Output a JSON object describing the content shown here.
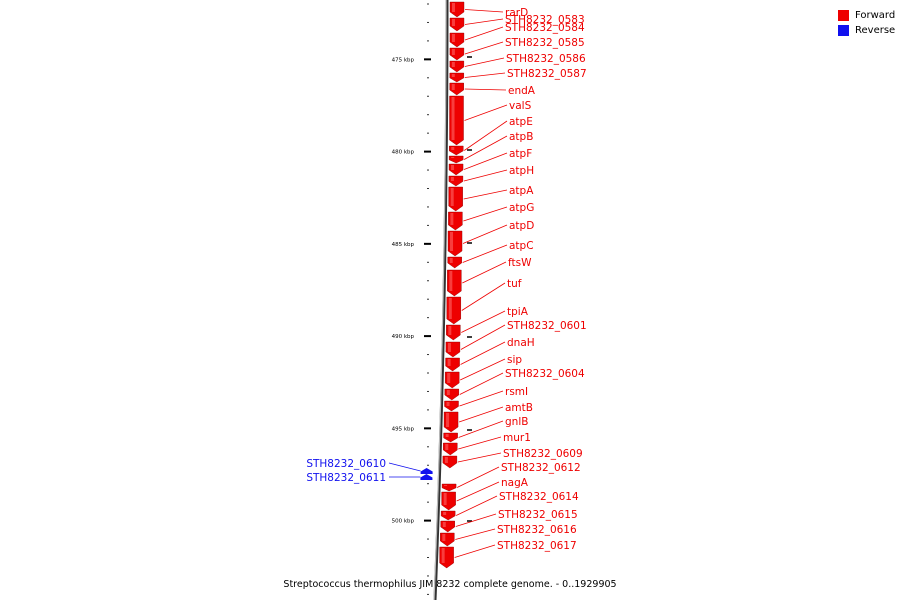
{
  "legend": [
    {
      "label": "Forward",
      "color": "#ee0000"
    },
    {
      "label": "Reverse",
      "color": "#1010ee"
    }
  ],
  "caption": "Streptococcus thermophilus JIM 8232 complete genome. - 0..1929905",
  "scale": {
    "ticks": [
      {
        "kbp": 475,
        "label": "475 kbp"
      },
      {
        "kbp": 480,
        "label": "480 kbp"
      },
      {
        "kbp": 485,
        "label": "485 kbp"
      },
      {
        "kbp": 490,
        "label": "490 kbp"
      },
      {
        "kbp": 495,
        "label": "495 kbp"
      },
      {
        "kbp": 500,
        "label": "500 kbp"
      }
    ]
  },
  "colors": {
    "forward": "#ee0000",
    "reverse": "#1010ee",
    "axis": "#999999"
  },
  "genes": [
    {
      "name": "rarD",
      "strand": "forward"
    },
    {
      "name": "STH8232_0583",
      "strand": "forward"
    },
    {
      "name": "STH8232_0584",
      "strand": "forward"
    },
    {
      "name": "STH8232_0585",
      "strand": "forward"
    },
    {
      "name": "STH8232_0586",
      "strand": "forward"
    },
    {
      "name": "STH8232_0587",
      "strand": "forward"
    },
    {
      "name": "endA",
      "strand": "forward"
    },
    {
      "name": "valS",
      "strand": "forward"
    },
    {
      "name": "atpE",
      "strand": "forward"
    },
    {
      "name": "atpB",
      "strand": "forward"
    },
    {
      "name": "atpF",
      "strand": "forward"
    },
    {
      "name": "atpH",
      "strand": "forward"
    },
    {
      "name": "atpA",
      "strand": "forward"
    },
    {
      "name": "atpG",
      "strand": "forward"
    },
    {
      "name": "atpD",
      "strand": "forward"
    },
    {
      "name": "atpC",
      "strand": "forward"
    },
    {
      "name": "ftsW",
      "strand": "forward"
    },
    {
      "name": "tuf",
      "strand": "forward"
    },
    {
      "name": "tpiA",
      "strand": "forward"
    },
    {
      "name": "STH8232_0601",
      "strand": "forward"
    },
    {
      "name": "dnaH",
      "strand": "forward"
    },
    {
      "name": "sip",
      "strand": "forward"
    },
    {
      "name": "STH8232_0604",
      "strand": "forward"
    },
    {
      "name": "rsmI",
      "strand": "forward"
    },
    {
      "name": "amtB",
      "strand": "forward"
    },
    {
      "name": "gnlB",
      "strand": "forward"
    },
    {
      "name": "mur1",
      "strand": "forward"
    },
    {
      "name": "STH8232_0609",
      "strand": "forward"
    },
    {
      "name": "STH8232_0610",
      "strand": "reverse"
    },
    {
      "name": "STH8232_0611",
      "strand": "reverse"
    },
    {
      "name": "STH8232_0612",
      "strand": "forward"
    },
    {
      "name": "nagA",
      "strand": "forward"
    },
    {
      "name": "STH8232_0614",
      "strand": "forward"
    },
    {
      "name": "STH8232_0615",
      "strand": "forward"
    },
    {
      "name": "STH8232_0616",
      "strand": "forward"
    },
    {
      "name": "STH8232_0617",
      "strand": "forward"
    }
  ]
}
